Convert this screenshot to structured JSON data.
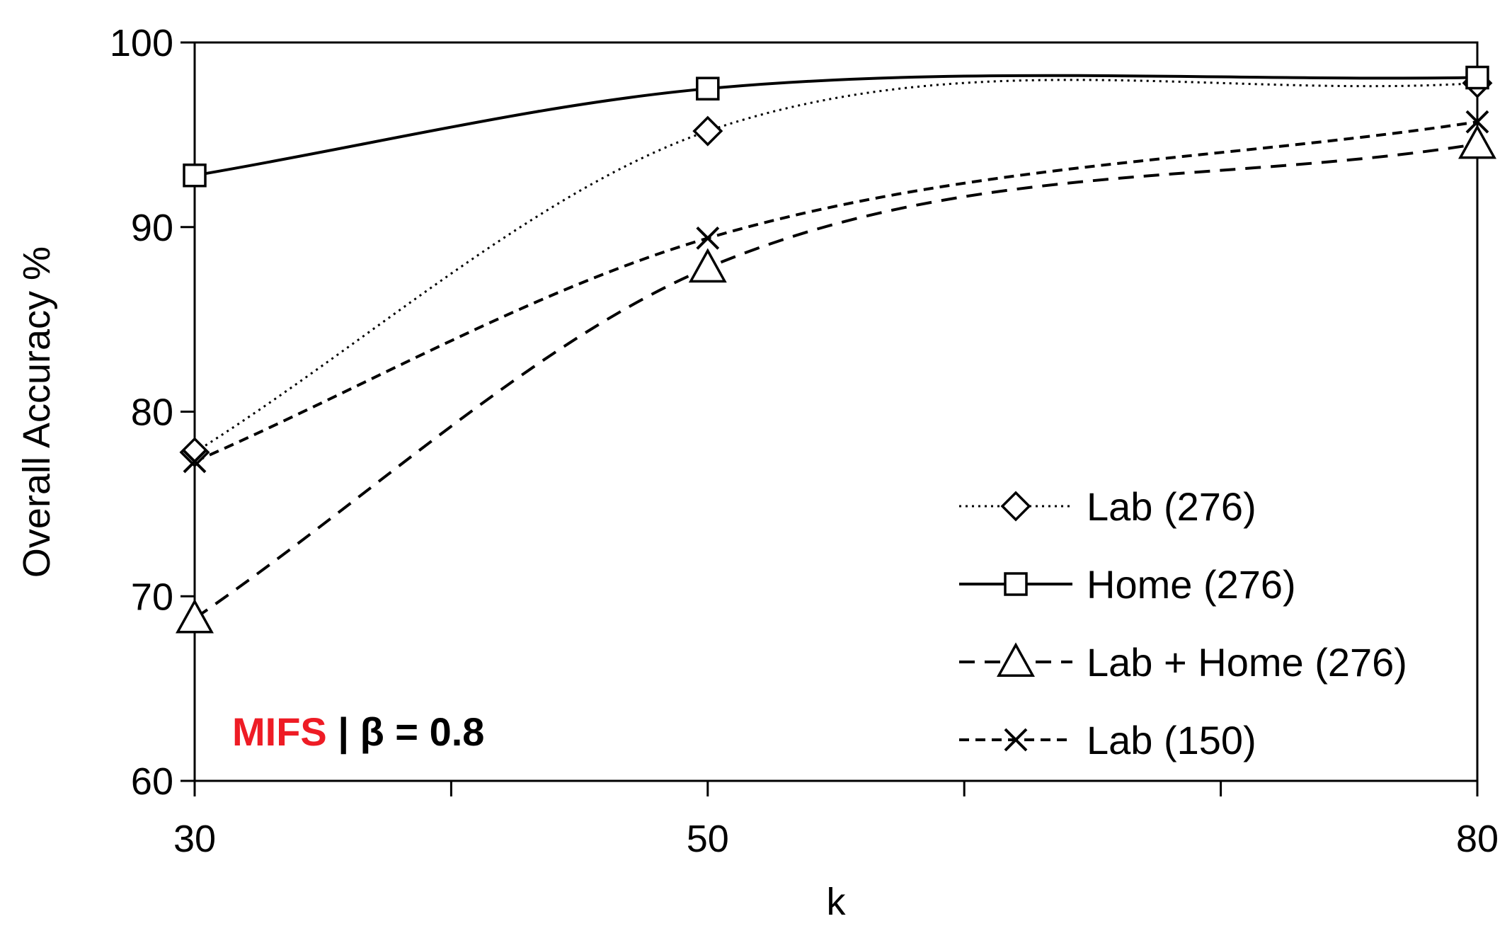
{
  "chart_data": {
    "type": "line",
    "title": "",
    "xlabel": "k",
    "ylabel": "Overall Accuracy %",
    "x": [
      30,
      50,
      80
    ],
    "x_tick_labels": [
      "30",
      "50",
      "80"
    ],
    "ylim": [
      60,
      100
    ],
    "y_ticks": [
      60,
      70,
      80,
      90,
      100
    ],
    "y_tick_labels": [
      "60",
      "70",
      "80",
      "90",
      "100"
    ],
    "grid": false,
    "smoothed": true,
    "legend_position": "bottom-right",
    "series": [
      {
        "name": "Lab (276)",
        "values": [
          77.8,
          95.2,
          97.8
        ],
        "marker": "diamond",
        "line_style": "dotted"
      },
      {
        "name": "Home (276)",
        "values": [
          92.8,
          97.5,
          98.1
        ],
        "marker": "square",
        "line_style": "solid"
      },
      {
        "name": "Lab + Home (276)",
        "values": [
          68.8,
          87.8,
          94.5
        ],
        "marker": "triangle",
        "line_style": "long-dash"
      },
      {
        "name": "Lab (150)",
        "values": [
          77.3,
          89.4,
          95.7
        ],
        "marker": "x",
        "line_style": "short-dash"
      }
    ],
    "annotation": {
      "method": "MIFS",
      "separator": " | ",
      "param_text": "β = 0.8",
      "method_color": "#ee1c25",
      "text_color": "#000000"
    }
  }
}
